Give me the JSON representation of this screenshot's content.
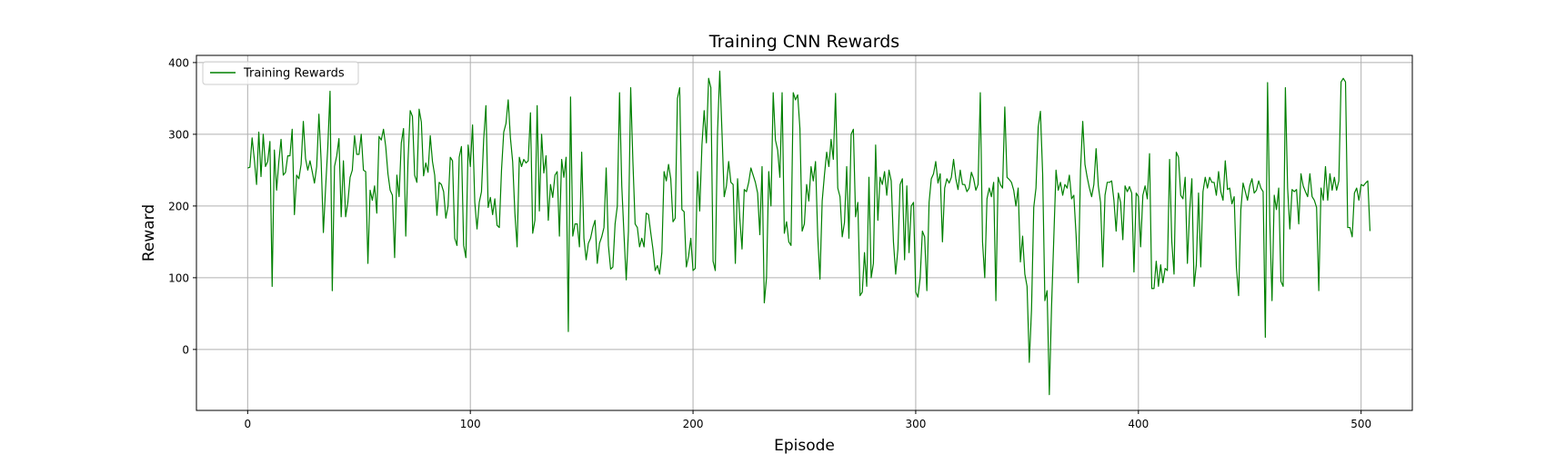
{
  "chart_data": {
    "type": "line",
    "title": "Training CNN Rewards",
    "xlabel": "Episode",
    "ylabel": "Reward",
    "xlim": [
      -23,
      523
    ],
    "ylim": [
      -85,
      410
    ],
    "xticks": [
      0,
      100,
      200,
      300,
      400,
      500
    ],
    "yticks": [
      0,
      100,
      200,
      300,
      400
    ],
    "grid": true,
    "legend_position": "top-left",
    "series": [
      {
        "name": "Training Rewards",
        "color": "#008000",
        "x_start": 0,
        "x_step": 1,
        "values": [
          253,
          254,
          295,
          265,
          230,
          303,
          241,
          300,
          255,
          262,
          290,
          88,
          278,
          222,
          262,
          293,
          243,
          247,
          270,
          270,
          307,
          188,
          243,
          238,
          258,
          318,
          266,
          250,
          263,
          248,
          232,
          255,
          328,
          263,
          163,
          225,
          283,
          360,
          82,
          255,
          270,
          294,
          185,
          263,
          185,
          205,
          240,
          250,
          298,
          272,
          272,
          300,
          250,
          248,
          120,
          222,
          208,
          228,
          190,
          297,
          292,
          307,
          283,
          245,
          222,
          215,
          128,
          243,
          213,
          288,
          308,
          158,
          262,
          333,
          325,
          243,
          233,
          335,
          317,
          242,
          260,
          247,
          298,
          262,
          243,
          187,
          233,
          230,
          220,
          183,
          200,
          268,
          263,
          155,
          145,
          268,
          283,
          145,
          128,
          285,
          255,
          313,
          205,
          168,
          205,
          220,
          293,
          340,
          198,
          212,
          188,
          210,
          173,
          170,
          250,
          303,
          315,
          348,
          295,
          262,
          190,
          143,
          268,
          255,
          265,
          260,
          263,
          330,
          162,
          180,
          340,
          193,
          300,
          246,
          270,
          180,
          230,
          212,
          243,
          248,
          158,
          265,
          240,
          268,
          25,
          352,
          158,
          175,
          175,
          143,
          275,
          155,
          125,
          148,
          155,
          170,
          180,
          120,
          148,
          157,
          170,
          253,
          145,
          112,
          115,
          175,
          200,
          358,
          228,
          160,
          97,
          165,
          365,
          262,
          175,
          170,
          143,
          155,
          143,
          190,
          188,
          163,
          140,
          110,
          117,
          105,
          135,
          248,
          235,
          258,
          238,
          178,
          183,
          350,
          365,
          195,
          192,
          115,
          130,
          155,
          110,
          113,
          248,
          193,
          285,
          333,
          288,
          378,
          365,
          123,
          110,
          303,
          388,
          303,
          213,
          228,
          262,
          233,
          230,
          120,
          238,
          183,
          140,
          223,
          220,
          233,
          253,
          243,
          233,
          218,
          160,
          255,
          65,
          100,
          248,
          200,
          358,
          292,
          278,
          240,
          358,
          162,
          178,
          150,
          145,
          358,
          348,
          355,
          308,
          165,
          175,
          230,
          207,
          255,
          235,
          262,
          158,
          98,
          207,
          243,
          275,
          255,
          293,
          265,
          357,
          225,
          213,
          157,
          177,
          255,
          155,
          300,
          307,
          185,
          205,
          75,
          80,
          135,
          88,
          240,
          100,
          120,
          285,
          180,
          240,
          230,
          248,
          215,
          250,
          235,
          150,
          105,
          140,
          230,
          238,
          125,
          228,
          135,
          200,
          205,
          80,
          73,
          100,
          165,
          157,
          82,
          205,
          238,
          245,
          262,
          232,
          245,
          150,
          225,
          238,
          232,
          240,
          265,
          238,
          223,
          250,
          230,
          230,
          220,
          225,
          247,
          238,
          222,
          230,
          358,
          150,
          100,
          210,
          225,
          213,
          233,
          68,
          240,
          230,
          225,
          338,
          240,
          237,
          233,
          222,
          200,
          225,
          122,
          158,
          105,
          88,
          -18,
          55,
          198,
          225,
          310,
          332,
          245,
          68,
          82,
          -63,
          60,
          155,
          250,
          222,
          233,
          215,
          230,
          225,
          243,
          210,
          215,
          160,
          93,
          250,
          318,
          258,
          240,
          225,
          213,
          230,
          280,
          228,
          205,
          115,
          215,
          233,
          233,
          235,
          208,
          165,
          218,
          205,
          153,
          228,
          220,
          227,
          218,
          108,
          218,
          213,
          143,
          215,
          228,
          210,
          273,
          85,
          85,
          123,
          88,
          118,
          93,
          113,
          110,
          265,
          150,
          105,
          275,
          268,
          215,
          210,
          240,
          120,
          193,
          238,
          88,
          118,
          218,
          115,
          220,
          240,
          225,
          240,
          233,
          233,
          215,
          248,
          220,
          208,
          263,
          223,
          225,
          203,
          213,
          115,
          75,
          195,
          232,
          220,
          208,
          228,
          238,
          218,
          222,
          235,
          225,
          220,
          17,
          372,
          180,
          68,
          215,
          195,
          225,
          95,
          88,
          365,
          225,
          168,
          223,
          220,
          223,
          175,
          245,
          228,
          220,
          213,
          245,
          213,
          208,
          198,
          82,
          225,
          208,
          255,
          208,
          245,
          222,
          240,
          222,
          235,
          373,
          378,
          373,
          170,
          170,
          157,
          218,
          225,
          208,
          230,
          228,
          232,
          235,
          165
        ]
      }
    ]
  }
}
